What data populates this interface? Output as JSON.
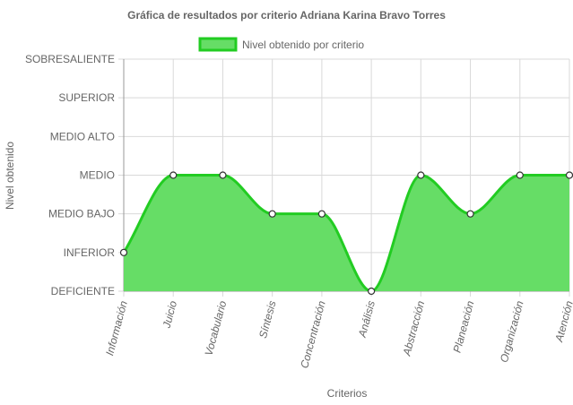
{
  "chart_data": {
    "type": "area",
    "title": "Gráfica de resultados por criterio Adriana Karina Bravo Torres",
    "xlabel": "Criterios",
    "ylabel": "Nivel obtenido",
    "categories": [
      "Información",
      "Juicio",
      "Vocabulario",
      "Síntesis",
      "Concentración",
      "Análisis",
      "Abstracción",
      "Planeación",
      "Organización",
      "Atención"
    ],
    "y_levels": [
      "DEFICIENTE",
      "INFERIOR",
      "MEDIO BAJO",
      "MEDIO",
      "MEDIO ALTO",
      "SUPERIOR",
      "SOBRESALIENTE"
    ],
    "series": [
      {
        "name": "Nivel obtenido por criterio",
        "values": [
          1,
          3,
          3,
          2,
          2,
          0,
          3,
          2,
          3,
          3
        ]
      }
    ],
    "ylim": [
      0,
      6
    ],
    "grid": true,
    "legend_position": "top",
    "colors": {
      "fill": "#66dd66",
      "line": "#22cc22",
      "point_fill": "#ffffff",
      "point_stroke": "#333333",
      "grid": "#d9d9d9",
      "axis": "#999999",
      "text": "#666666"
    }
  }
}
